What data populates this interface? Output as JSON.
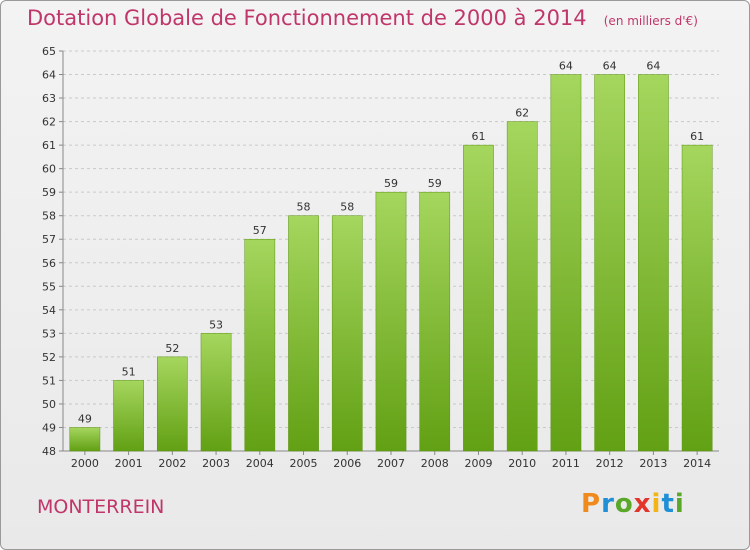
{
  "header": {
    "title": "Dotation Globale de Fonctionnement de 2000 à 2014",
    "unit": "(en milliers d'€)"
  },
  "footer": {
    "place": "MONTERREIN",
    "logo": "Proxiti"
  },
  "colors": {
    "bar_top": "#a5d65e",
    "bar_bottom": "#62a014",
    "title": "#c0366a"
  },
  "chart_data": {
    "type": "bar",
    "categories": [
      "2000",
      "2001",
      "2002",
      "2003",
      "2004",
      "2005",
      "2006",
      "2007",
      "2008",
      "2009",
      "2010",
      "2011",
      "2012",
      "2013",
      "2014"
    ],
    "values": [
      49,
      51,
      52,
      53,
      57,
      58,
      58,
      59,
      59,
      61,
      62,
      64,
      64,
      64,
      61
    ],
    "title": "Dotation Globale de Fonctionnement de 2000 à 2014",
    "subtitle": "(en milliers d'€)",
    "ylim": [
      48,
      65
    ],
    "yticks": [
      48,
      49,
      50,
      51,
      52,
      53,
      54,
      55,
      56,
      57,
      58,
      59,
      60,
      61,
      62,
      63,
      64,
      65
    ],
    "grid": true
  }
}
